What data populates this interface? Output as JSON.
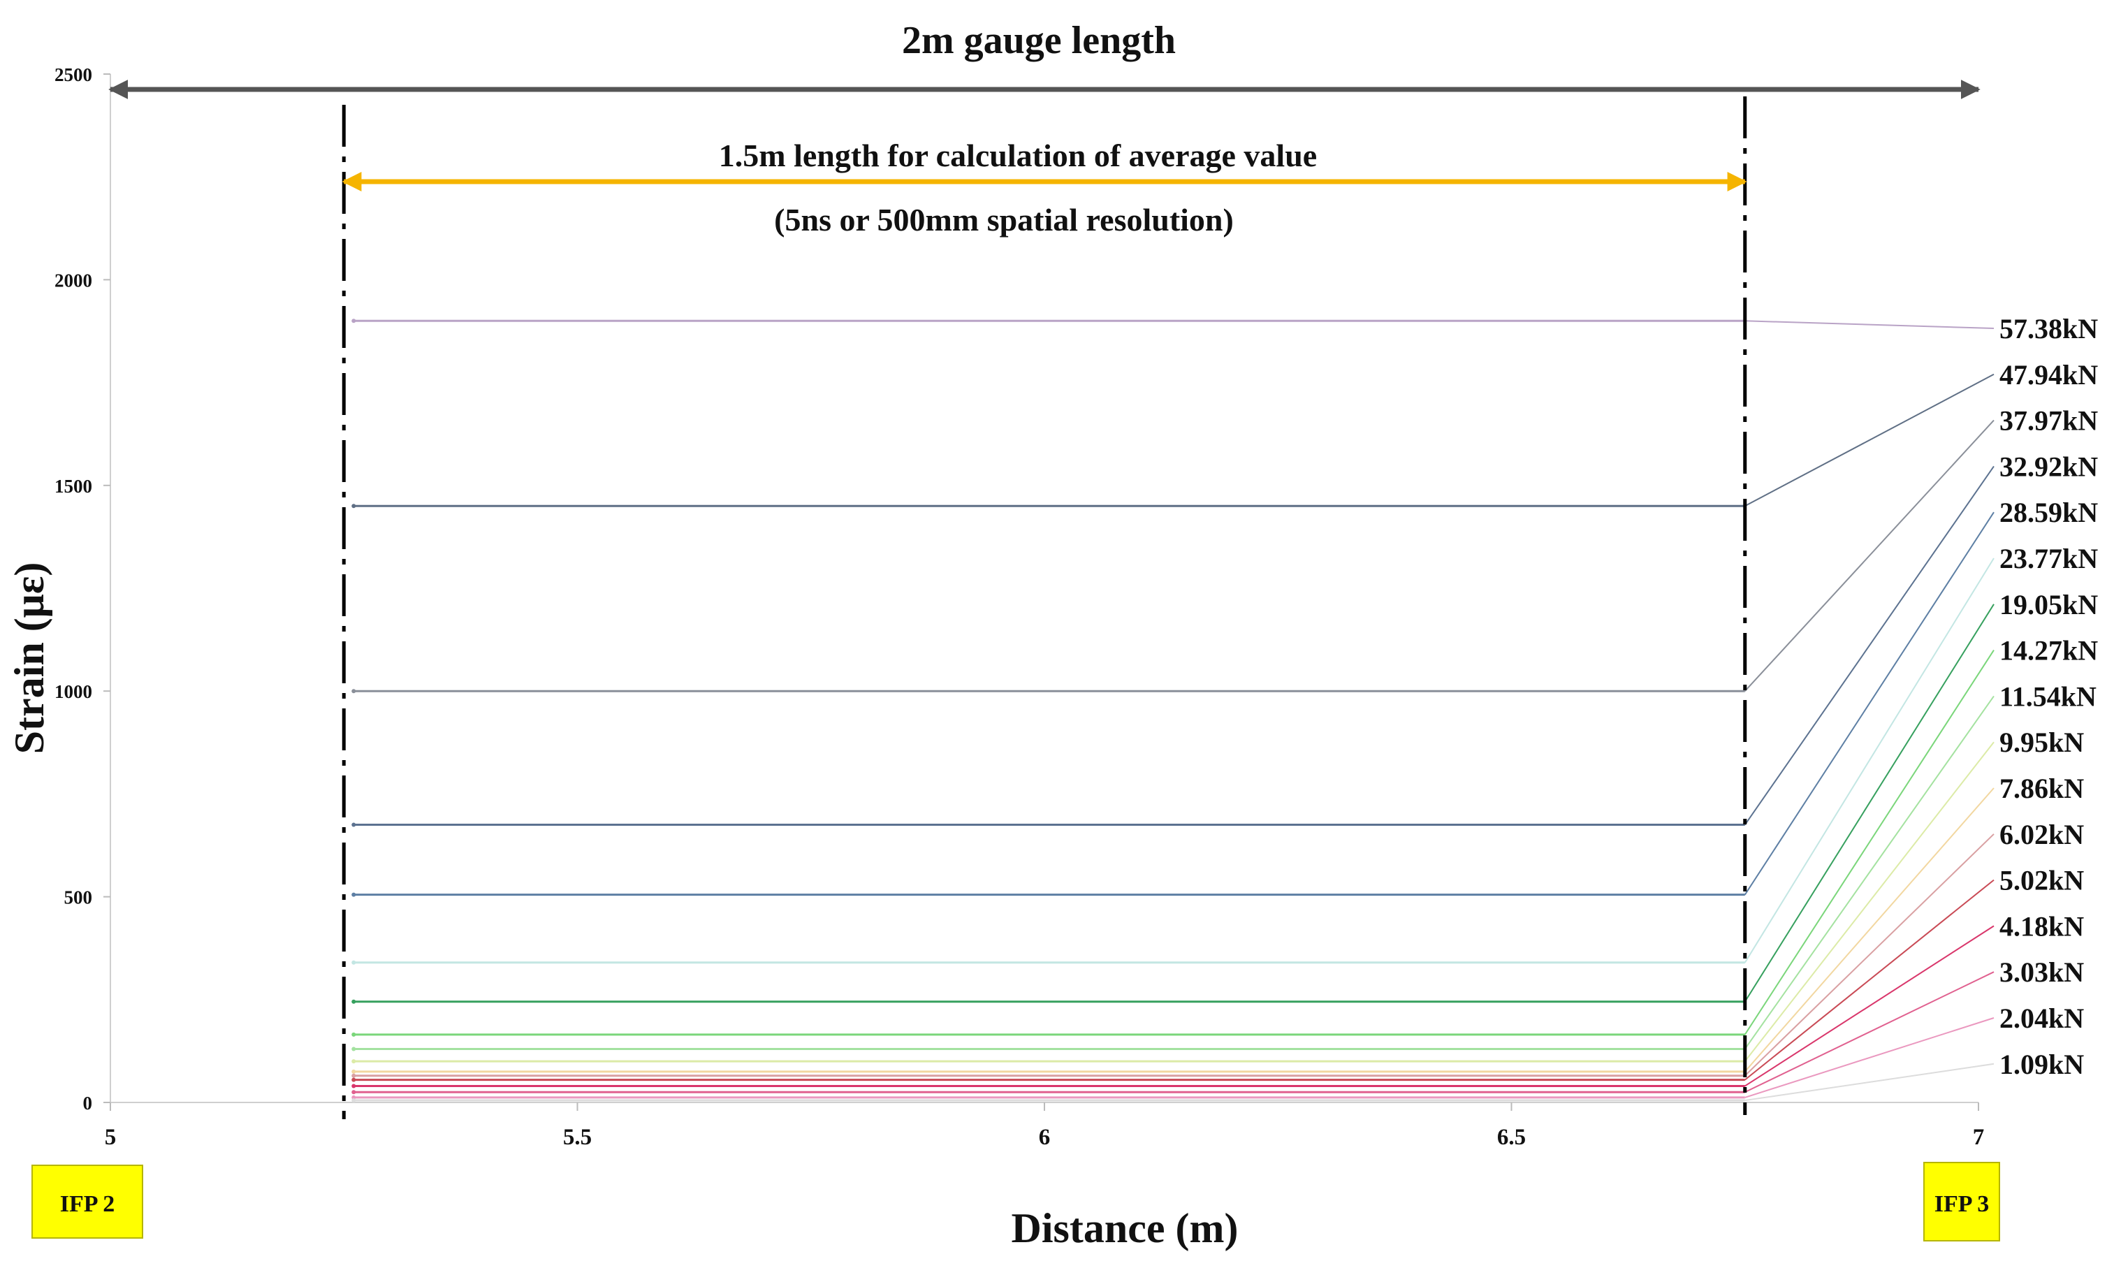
{
  "chart_data": {
    "type": "line",
    "xlabel": "Distance (m)",
    "ylabel": "Strain (με)",
    "xlim": [
      5,
      7
    ],
    "ylim": [
      0,
      2500
    ],
    "x_ticks": [
      "5",
      "5.5",
      "6",
      "6.5",
      "7"
    ],
    "y_ticks": [
      "0",
      "500",
      "1000",
      "1500",
      "2000",
      "2500"
    ],
    "grid": false,
    "gauge_label": "2m gauge length",
    "gauge_range": [
      5,
      7
    ],
    "calc_label": "1.5m  length for calculation of average value",
    "calc_sublabel": "(5ns or 500mm spatial resolution)",
    "calc_range": [
      5.25,
      6.75
    ],
    "markers": [
      {
        "label": "IFP 2",
        "x": 5
      },
      {
        "label": "IFP 3",
        "x": 7
      }
    ],
    "series": [
      {
        "name": "57.38kN",
        "strain": 1900,
        "color": "#b9a3c6"
      },
      {
        "name": "47.94kN",
        "strain": 1450,
        "color": "#5f6f85"
      },
      {
        "name": "37.97kN",
        "strain": 1000,
        "color": "#8a8f99"
      },
      {
        "name": "32.92kN",
        "strain": 675,
        "color": "#5c7290"
      },
      {
        "name": "28.59kN",
        "strain": 505,
        "color": "#5d7fa4"
      },
      {
        "name": "23.77kN",
        "strain": 340,
        "color": "#c3e6e3"
      },
      {
        "name": "19.05kN",
        "strain": 245,
        "color": "#36a05e"
      },
      {
        "name": "14.27kN",
        "strain": 165,
        "color": "#7ad67a"
      },
      {
        "name": "11.54kN",
        "strain": 130,
        "color": "#a4e2a0"
      },
      {
        "name": "9.95kN",
        "strain": 100,
        "color": "#dceba7"
      },
      {
        "name": "7.86kN",
        "strain": 75,
        "color": "#f2d7a0"
      },
      {
        "name": "6.02kN",
        "strain": 65,
        "color": "#d9a0a2"
      },
      {
        "name": "5.02kN",
        "strain": 55,
        "color": "#c94a55"
      },
      {
        "name": "4.18kN",
        "strain": 40,
        "color": "#d9366b"
      },
      {
        "name": "3.03kN",
        "strain": 25,
        "color": "#e0608f"
      },
      {
        "name": "2.04kN",
        "strain": 12,
        "color": "#ea98bf"
      },
      {
        "name": "1.09kN",
        "strain": 5,
        "color": "#dcdcdc"
      }
    ]
  },
  "colors": {
    "axis": "#d0d0d0",
    "gauge_arrow": "#555555",
    "calc_arrow": "#f5b400",
    "boundary": "#000000",
    "marker_fill": "#ffff00"
  }
}
